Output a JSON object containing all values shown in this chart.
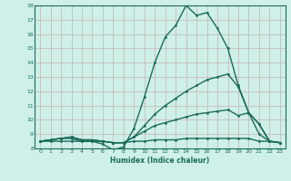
{
  "xlabel": "Humidex (Indice chaleur)",
  "x_values": [
    0,
    1,
    2,
    3,
    4,
    5,
    6,
    7,
    8,
    9,
    10,
    11,
    12,
    13,
    14,
    15,
    16,
    17,
    18,
    19,
    20,
    21,
    22,
    23
  ],
  "line1": [
    8.5,
    8.6,
    8.7,
    8.7,
    8.5,
    8.5,
    8.3,
    7.9,
    8.1,
    9.4,
    11.6,
    14.0,
    15.8,
    16.6,
    18.0,
    17.3,
    17.5,
    16.4,
    15.0,
    12.4,
    10.5,
    9.7,
    8.5,
    8.4
  ],
  "line2": [
    8.5,
    8.6,
    8.7,
    8.8,
    8.6,
    8.6,
    8.5,
    8.4,
    8.4,
    8.8,
    9.6,
    10.4,
    11.0,
    11.5,
    12.0,
    12.4,
    12.8,
    13.0,
    13.2,
    12.3,
    10.5,
    9.0,
    8.5,
    8.4
  ],
  "line3": [
    8.5,
    8.6,
    8.7,
    8.8,
    8.6,
    8.6,
    8.5,
    8.4,
    8.4,
    8.8,
    9.2,
    9.6,
    9.8,
    10.0,
    10.2,
    10.4,
    10.5,
    10.6,
    10.7,
    10.3,
    10.5,
    9.7,
    8.5,
    8.4
  ],
  "line4": [
    8.5,
    8.5,
    8.5,
    8.5,
    8.5,
    8.5,
    8.5,
    8.4,
    8.4,
    8.5,
    8.5,
    8.6,
    8.6,
    8.6,
    8.7,
    8.7,
    8.7,
    8.7,
    8.7,
    8.7,
    8.7,
    8.5,
    8.5,
    8.4
  ],
  "line_color": "#1a6b5a",
  "bg_color": "#cef0e8",
  "grid_color": "#c8b0b0",
  "ylim": [
    8,
    18
  ],
  "xlim": [
    -0.5,
    23.5
  ],
  "yticks": [
    8,
    9,
    10,
    11,
    12,
    13,
    14,
    15,
    16,
    17,
    18
  ],
  "xticks": [
    0,
    1,
    2,
    3,
    4,
    5,
    6,
    7,
    8,
    9,
    10,
    11,
    12,
    13,
    14,
    15,
    16,
    17,
    18,
    19,
    20,
    21,
    22,
    23
  ]
}
